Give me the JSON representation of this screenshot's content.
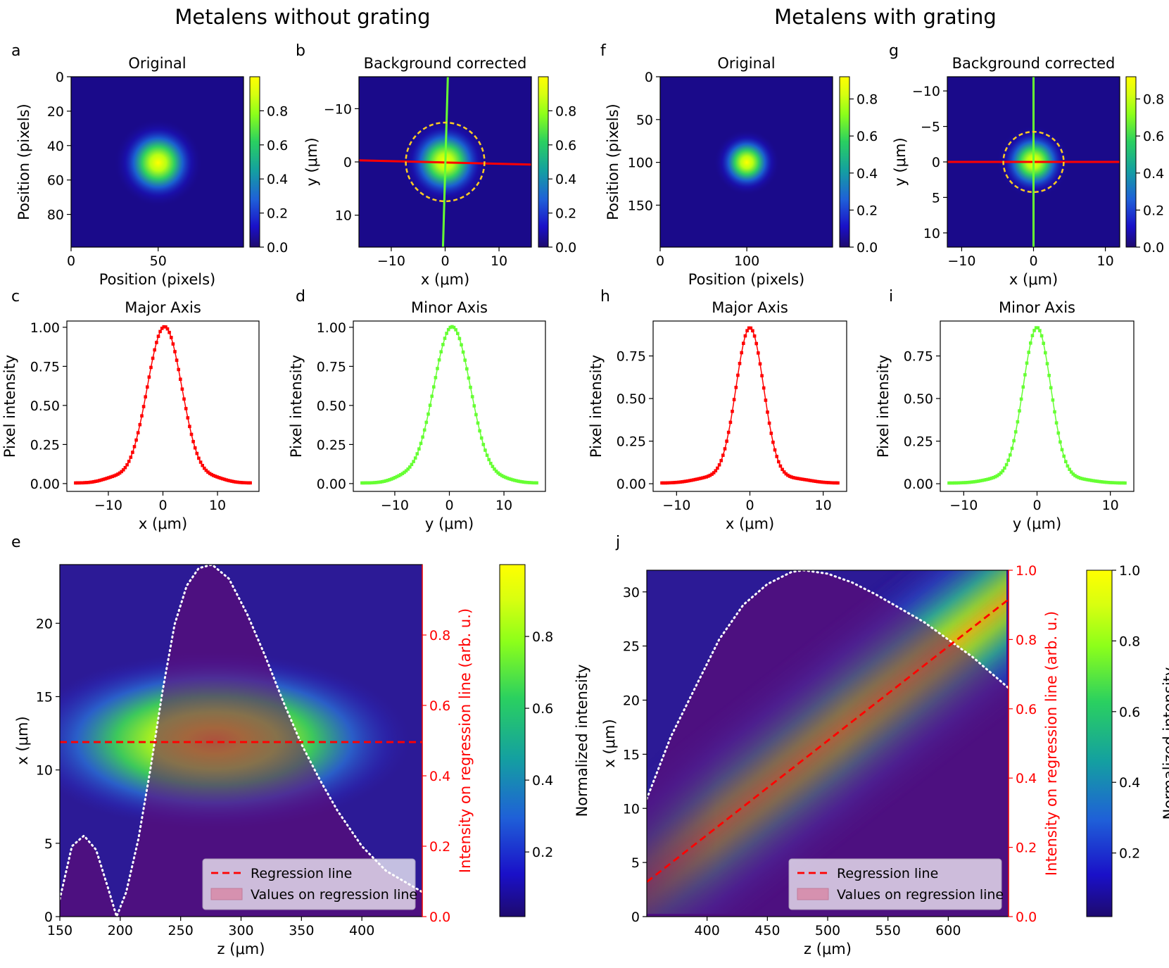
{
  "headings": {
    "left": "Metalens without grating",
    "right": "Metalens with grating"
  },
  "colors": {
    "red": "#ff0000",
    "green": "#66ff33",
    "yellow_circle": "#ffcc22",
    "white": "#ffffff",
    "dark_blue": "#1a0a8a",
    "purple": "#46086e"
  },
  "chart_data": [
    {
      "id": "a",
      "type": "heatmap",
      "panel_label": "a",
      "title": "Original",
      "xlabel": "Position (pixels)",
      "ylabel": "Position (pixels)",
      "xlim": [
        0,
        99
      ],
      "ylim": [
        99,
        0
      ],
      "xticks": [
        0,
        50
      ],
      "yticks": [
        0,
        20,
        40,
        60,
        80
      ],
      "spot": {
        "x": 50,
        "y": 50,
        "sigma": 8
      },
      "colorbar": {
        "min": 0,
        "max": 1.0,
        "ticks": [
          0.0,
          0.2,
          0.4,
          0.6,
          0.8
        ]
      }
    },
    {
      "id": "b",
      "type": "heatmap",
      "panel_label": "b",
      "title": "Background corrected",
      "xlabel": "x (μm)",
      "ylabel": "y (μm)",
      "xlim": [
        -16,
        16
      ],
      "ylim": [
        16,
        -16
      ],
      "xticks": [
        -10,
        0,
        10
      ],
      "yticks": [
        -10,
        0,
        10
      ],
      "spot": {
        "x": 0,
        "y": 0,
        "sigma": 2.6
      },
      "circle": {
        "cx": 0,
        "cy": 0,
        "r": 7.3
      },
      "lines": [
        {
          "color": "red",
          "x1": -16,
          "y1": -0.3,
          "x2": 16,
          "y2": 0.5
        },
        {
          "color": "green",
          "x1": 0.5,
          "y1": -16,
          "x2": -0.4,
          "y2": 16
        }
      ],
      "colorbar": {
        "min": 0,
        "max": 1.0,
        "ticks": [
          0.0,
          0.2,
          0.4,
          0.6,
          0.8
        ]
      }
    },
    {
      "id": "c",
      "type": "line",
      "panel_label": "c",
      "title": "Major Axis",
      "xlabel": "x (μm)",
      "ylabel": "Pixel intensity",
      "xlim": [
        -17.6,
        17.6
      ],
      "ylim": [
        -0.05,
        1.04
      ],
      "xticks": [
        -10,
        0,
        10
      ],
      "yticks": [
        0.0,
        0.25,
        0.5,
        0.75,
        1.0
      ],
      "x_range": [
        -16,
        16
      ],
      "points": 96,
      "peak": 1.0,
      "peak_x": 0.3,
      "sigma": 3.2,
      "side_lobes": [
        {
          "x": -9,
          "amp": 0.03
        },
        {
          "x": 9.5,
          "amp": 0.028
        }
      ],
      "color": "red"
    },
    {
      "id": "d",
      "type": "line",
      "panel_label": "d",
      "title": "Minor Axis",
      "xlabel": "y (μm)",
      "ylabel": "Pixel intensity",
      "xlim": [
        -17.6,
        17.6
      ],
      "ylim": [
        -0.05,
        1.04
      ],
      "xticks": [
        -10,
        0,
        10
      ],
      "yticks": [
        0.0,
        0.25,
        0.5,
        0.75,
        1.0
      ],
      "x_range": [
        -16,
        16
      ],
      "points": 96,
      "peak": 1.0,
      "peak_x": 0.5,
      "sigma": 3.4,
      "side_lobes": [
        {
          "x": -8.5,
          "amp": 0.032
        },
        {
          "x": 10,
          "amp": 0.02
        }
      ],
      "color": "green"
    },
    {
      "id": "f",
      "type": "heatmap",
      "panel_label": "f",
      "title": "Original",
      "xlabel": "Position (pixels)",
      "ylabel": "Position (pixels)",
      "xlim": [
        0,
        199
      ],
      "ylim": [
        199,
        0
      ],
      "xticks": [
        0,
        100
      ],
      "yticks": [
        0,
        50,
        100,
        150
      ],
      "spot": {
        "x": 100,
        "y": 100,
        "sigma": 12
      },
      "colorbar": {
        "min": 0,
        "max": 0.92,
        "ticks": [
          0.0,
          0.2,
          0.4,
          0.6,
          0.8
        ]
      }
    },
    {
      "id": "g",
      "type": "heatmap",
      "panel_label": "g",
      "title": "Background corrected",
      "xlabel": "x (μm)",
      "ylabel": "y (μm)",
      "xlim": [
        -12,
        12
      ],
      "ylim": [
        12,
        -12
      ],
      "xticks": [
        -10,
        0,
        10
      ],
      "yticks": [
        -10,
        -5,
        0,
        5,
        10
      ],
      "spot": {
        "x": 0,
        "y": 0,
        "sigma": 1.6
      },
      "circle": {
        "cx": 0,
        "cy": 0,
        "r": 4.2
      },
      "lines": [
        {
          "color": "red",
          "x1": -12,
          "y1": 0,
          "x2": 12,
          "y2": 0
        },
        {
          "color": "green",
          "x1": 0,
          "y1": -12,
          "x2": 0,
          "y2": 12
        }
      ],
      "colorbar": {
        "min": 0,
        "max": 0.92,
        "ticks": [
          0.0,
          0.2,
          0.4,
          0.6,
          0.8
        ]
      }
    },
    {
      "id": "h",
      "type": "line",
      "panel_label": "h",
      "title": "Major Axis",
      "xlabel": "x (μm)",
      "ylabel": "Pixel intensity",
      "xlim": [
        -13.2,
        13.2
      ],
      "ylim": [
        -0.045,
        0.955
      ],
      "xticks": [
        -10,
        0,
        10
      ],
      "yticks": [
        0.0,
        0.25,
        0.5,
        0.75
      ],
      "x_range": [
        -12,
        12
      ],
      "points": 96,
      "peak": 0.91,
      "peak_x": 0.0,
      "sigma": 1.9,
      "side_lobes": [
        {
          "x": -5.5,
          "amp": 0.03
        },
        {
          "x": 6,
          "amp": 0.025
        }
      ],
      "color": "red"
    },
    {
      "id": "i",
      "type": "line",
      "panel_label": "i",
      "title": "Minor Axis",
      "xlabel": "y (μm)",
      "ylabel": "Pixel intensity",
      "xlim": [
        -13.2,
        13.2
      ],
      "ylim": [
        -0.045,
        0.955
      ],
      "xticks": [
        -10,
        0,
        10
      ],
      "yticks": [
        0.0,
        0.25,
        0.5,
        0.75
      ],
      "x_range": [
        -12,
        12
      ],
      "points": 96,
      "peak": 0.91,
      "peak_x": 0.0,
      "sigma": 1.9,
      "side_lobes": [
        {
          "x": -5,
          "amp": 0.028
        },
        {
          "x": 5.5,
          "amp": 0.022
        }
      ],
      "color": "green"
    },
    {
      "id": "e",
      "type": "heatmap",
      "panel_label": "e",
      "xlabel": "z (μm)",
      "ylabel": "x (μm)",
      "y2label": "Intensity on regression line (arb. u.)",
      "colorbar_label": "Normalized intensity",
      "xlim": [
        150,
        450
      ],
      "ylim": [
        0,
        24
      ],
      "y2lim": [
        0,
        1.0
      ],
      "xticks": [
        150,
        200,
        250,
        300,
        350,
        400
      ],
      "yticks": [
        0,
        5,
        10,
        15,
        20
      ],
      "y2ticks": [
        0.0,
        0.2,
        0.4,
        0.6,
        0.8
      ],
      "beam": {
        "z0": 278,
        "x0": 12,
        "sz": 48,
        "sx": 1.9
      },
      "regression_line": {
        "z": [
          150,
          450
        ],
        "x": [
          11.9,
          11.9
        ]
      },
      "intensity_curve": [
        {
          "z": 150,
          "v": 0.05
        },
        {
          "z": 160,
          "v": 0.2
        },
        {
          "z": 170,
          "v": 0.23
        },
        {
          "z": 180,
          "v": 0.19
        },
        {
          "z": 190,
          "v": 0.08
        },
        {
          "z": 197,
          "v": 0.0
        },
        {
          "z": 205,
          "v": 0.07
        },
        {
          "z": 215,
          "v": 0.22
        },
        {
          "z": 225,
          "v": 0.42
        },
        {
          "z": 235,
          "v": 0.64
        },
        {
          "z": 245,
          "v": 0.83
        },
        {
          "z": 255,
          "v": 0.94
        },
        {
          "z": 265,
          "v": 0.99
        },
        {
          "z": 276,
          "v": 1.0
        },
        {
          "z": 290,
          "v": 0.96
        },
        {
          "z": 305,
          "v": 0.86
        },
        {
          "z": 320,
          "v": 0.74
        },
        {
          "z": 335,
          "v": 0.61
        },
        {
          "z": 350,
          "v": 0.49
        },
        {
          "z": 365,
          "v": 0.39
        },
        {
          "z": 380,
          "v": 0.3
        },
        {
          "z": 400,
          "v": 0.2
        },
        {
          "z": 420,
          "v": 0.13
        },
        {
          "z": 450,
          "v": 0.07
        }
      ],
      "legend": {
        "location": "lower-right",
        "entries": [
          "Regression line",
          "Values on regression line"
        ]
      },
      "colorbar": {
        "min": 0.02,
        "max": 1.0,
        "ticks": [
          0.2,
          0.4,
          0.6,
          0.8
        ]
      }
    },
    {
      "id": "j",
      "type": "heatmap",
      "panel_label": "j",
      "xlabel": "z (μm)",
      "ylabel": "x (μm)",
      "y2label": "Intensity on regression line (arb. u.)",
      "colorbar_label": "Normalized intensity",
      "xlim": [
        350,
        650
      ],
      "ylim": [
        0,
        32
      ],
      "y2lim": [
        0,
        1.0
      ],
      "xticks": [
        400,
        450,
        500,
        550,
        600
      ],
      "yticks": [
        0,
        5,
        10,
        15,
        20,
        25,
        30
      ],
      "y2ticks": [
        0.0,
        0.2,
        0.4,
        0.6,
        0.8,
        1.0
      ],
      "beam": {
        "z0": 520,
        "sz": 85,
        "sx": 2.4,
        "x_at_350": 3.2,
        "x_at_650": 29.3
      },
      "regression_line": {
        "z": [
          350,
          650
        ],
        "x": [
          3.2,
          29.3
        ]
      },
      "intensity_curve": [
        {
          "z": 350,
          "v": 0.34
        },
        {
          "z": 370,
          "v": 0.52
        },
        {
          "z": 390,
          "v": 0.66
        },
        {
          "z": 410,
          "v": 0.8
        },
        {
          "z": 430,
          "v": 0.9
        },
        {
          "z": 450,
          "v": 0.96
        },
        {
          "z": 470,
          "v": 0.995
        },
        {
          "z": 480,
          "v": 1.0
        },
        {
          "z": 500,
          "v": 0.99
        },
        {
          "z": 520,
          "v": 0.965
        },
        {
          "z": 540,
          "v": 0.93
        },
        {
          "z": 560,
          "v": 0.89
        },
        {
          "z": 580,
          "v": 0.85
        },
        {
          "z": 600,
          "v": 0.8
        },
        {
          "z": 620,
          "v": 0.75
        },
        {
          "z": 650,
          "v": 0.66
        }
      ],
      "legend": {
        "location": "lower-right",
        "entries": [
          "Regression line",
          "Values on regression line"
        ]
      },
      "colorbar": {
        "min": 0.02,
        "max": 1.0,
        "ticks": [
          0.2,
          0.4,
          0.6,
          0.8,
          1.0
        ]
      }
    }
  ]
}
